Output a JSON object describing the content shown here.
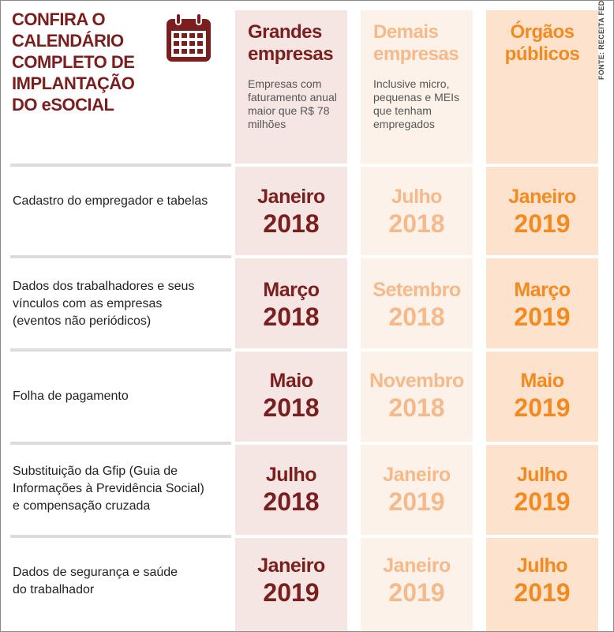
{
  "title_lines": [
    "CONFIRA O",
    "CALENDÁRIO",
    "COMPLETO DE",
    "IMPLANTAÇÃO",
    "DO eSOCIAL"
  ],
  "icon": "calendar-icon",
  "source": "FONTE: RECEITA FEDERAL",
  "columns": [
    {
      "heading": "Grandes empresas",
      "subtitle": "Empresas com faturamento anual maior que R$ 78 milhões",
      "color": "#7a1e1e",
      "bg": "#f5e6e4"
    },
    {
      "heading": "Demais empresas",
      "subtitle": "Inclusive micro, pequenas e MEIs que tenham empregados",
      "color": "#f5b98a",
      "bg": "#fdf2ea"
    },
    {
      "heading": "Órgãos públicos",
      "subtitle": "",
      "color": "#f28a1f",
      "bg": "#fde3cd"
    }
  ],
  "rows": [
    {
      "label": "Cadastro do empregador e tabelas",
      "cells": [
        {
          "month": "Janeiro",
          "year": "2018"
        },
        {
          "month": "Julho",
          "year": "2018"
        },
        {
          "month": "Janeiro",
          "year": "2019"
        }
      ]
    },
    {
      "label": "Dados dos trabalhadores e seus vínculos com as empresas (eventos não periódicos)",
      "cells": [
        {
          "month": "Março",
          "year": "2018"
        },
        {
          "month": "Setembro",
          "year": "2018"
        },
        {
          "month": "Março",
          "year": "2019"
        }
      ]
    },
    {
      "label": "Folha de pagamento",
      "cells": [
        {
          "month": "Maio",
          "year": "2018"
        },
        {
          "month": "Novembro",
          "year": "2018"
        },
        {
          "month": "Maio",
          "year": "2019"
        }
      ]
    },
    {
      "label": "Substituição da Gfip (Guia de Informações à Previdência Social) e compensação cruzada",
      "cells": [
        {
          "month": "Julho",
          "year": "2018"
        },
        {
          "month": "Janeiro",
          "year": "2019"
        },
        {
          "month": "Julho",
          "year": "2019"
        }
      ]
    },
    {
      "label": "Dados de segurança e saúde do trabalhador",
      "cells": [
        {
          "month": "Janeiro",
          "year": "2019"
        },
        {
          "month": "Janeiro",
          "year": "2019"
        },
        {
          "month": "Julho",
          "year": "2019"
        }
      ]
    }
  ]
}
